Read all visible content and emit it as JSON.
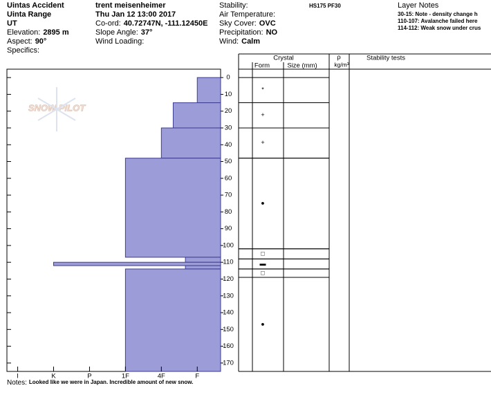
{
  "header": {
    "columns": [
      [
        {
          "value": "Uintas Accident"
        },
        {
          "value": "Uinta Range"
        },
        {
          "value": "UT"
        },
        {
          "label": "Elevation:",
          "value": "2895 m"
        },
        {
          "label": "Aspect:",
          "value": "90°"
        },
        {
          "label": "Specifics:"
        }
      ],
      [
        {
          "value": "trent meisenheimer"
        },
        {
          "value": "Thu Jan 12 13:00 2017"
        },
        {
          "label": "Co-ord:",
          "value": "40.72747N, -111.12450E"
        },
        {
          "label": "Slope Angle:",
          "value": "37°"
        },
        {
          "label": "Wind Loading:"
        }
      ],
      [
        {
          "label": "Stability:"
        },
        {
          "label": "Air Temperature:"
        },
        {
          "label": "Sky Cover:",
          "value": "OVC"
        },
        {
          "label": "Precipitation:",
          "value": "NO"
        },
        {
          "label": "Wind:",
          "value": "Calm"
        }
      ]
    ],
    "summary": "HS175 PF30"
  },
  "layer_notes": {
    "title": "Layer Notes",
    "items": [
      "30-15: Note - density change h",
      "110-107: Avalanche failed here",
      "114-112: Weak snow under crus"
    ]
  },
  "logo": "SNOW PILOT",
  "notes": {
    "label": "Notes:",
    "text": "Looked like we were in Japan. Incredible amount of new snow."
  },
  "chart_data": {
    "type": "snow_profile",
    "ylim": [
      -5,
      175
    ],
    "yticks": [
      0,
      10,
      20,
      30,
      40,
      50,
      60,
      70,
      80,
      90,
      100,
      110,
      120,
      130,
      140,
      150,
      160,
      170
    ],
    "xlim": [
      6.3,
      0.35
    ],
    "xticks": [
      {
        "value": 6,
        "label": "I"
      },
      {
        "value": 5,
        "label": "K"
      },
      {
        "value": 4,
        "label": "P"
      },
      {
        "value": 3,
        "label": "1F"
      },
      {
        "value": 2,
        "label": "4F"
      },
      {
        "value": 1,
        "label": "F"
      }
    ],
    "color": "#9c9cd8",
    "hardness_layers": {
      "top": [
        0,
        15,
        30,
        48,
        107,
        110,
        112,
        114
      ],
      "bottom": [
        15,
        30,
        48,
        107,
        110,
        112,
        114,
        175
      ],
      "values": [
        1,
        1.67,
        2,
        3,
        1.33,
        5,
        1.33,
        3
      ]
    },
    "crystal_table": {
      "headers": {
        "crystal": "Crystal",
        "form": "Form",
        "size": "Size (mm)",
        "rho": "ρ",
        "density_unit": "kg/m³",
        "stability": "Stability tests"
      },
      "top": [
        0,
        15,
        30,
        48,
        102,
        108,
        114,
        119
      ],
      "bottom": [
        15,
        30,
        48,
        102,
        108,
        114,
        119,
        175
      ],
      "forms": [
        "*",
        "+",
        "+",
        "●",
        "□",
        "▬",
        "□",
        "●"
      ]
    }
  }
}
